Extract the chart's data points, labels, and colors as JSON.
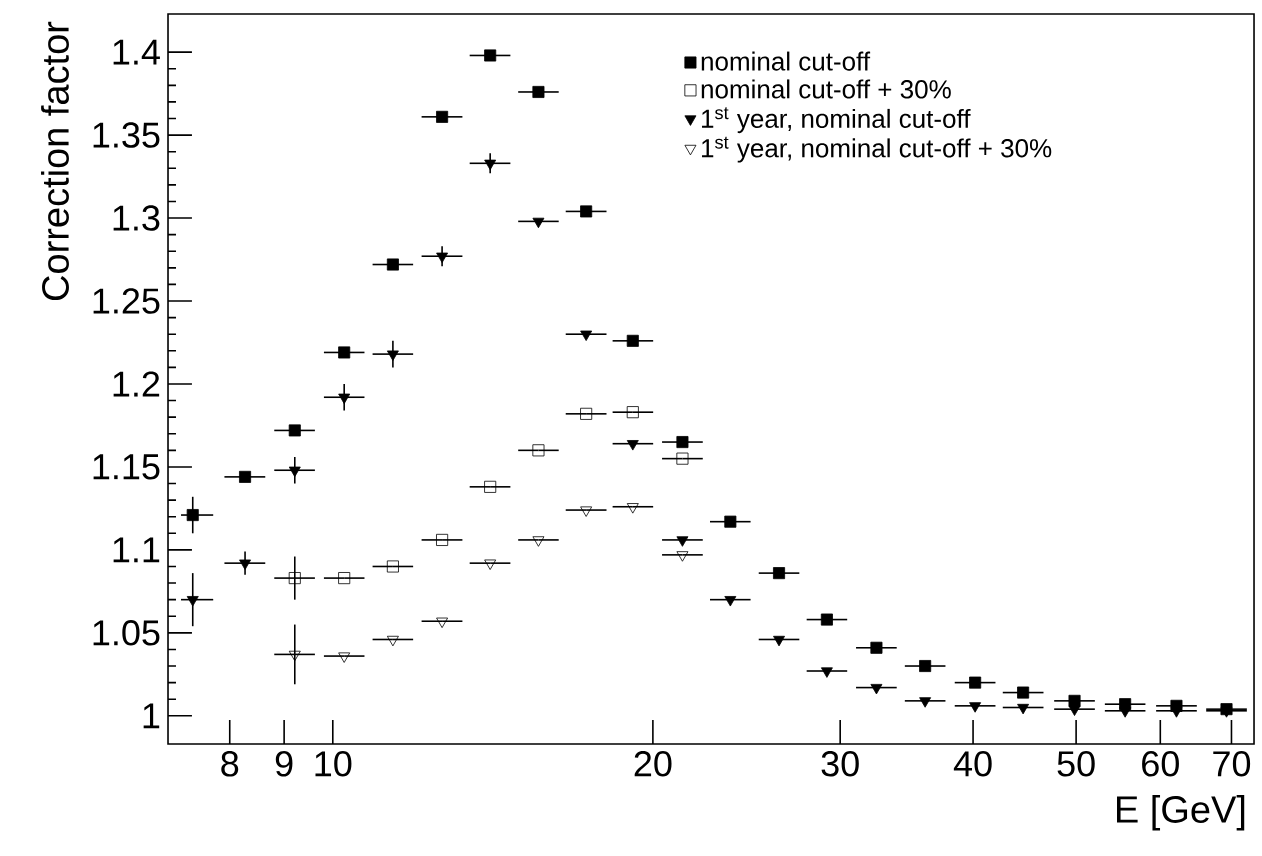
{
  "chart_data": {
    "type": "scatter",
    "xlabel": "E [GeV]",
    "ylabel": "Correction factor",
    "log": "x",
    "x": [
      7.385,
      8.27,
      9.21,
      10.25,
      11.39,
      12.67,
      14.06,
      15.61,
      17.31,
      19.15,
      21.32,
      23.65,
      26.28,
      29.15,
      32.45,
      36.06,
      40.18,
      44.58,
      49.83,
      55.6,
      62.14,
      69.25
    ],
    "xlim": [
      7,
      73.5
    ],
    "ylim": [
      0.983,
      1.423
    ],
    "xticks": [
      8,
      9,
      10,
      20,
      30,
      40,
      50,
      60,
      70
    ],
    "yticks": [
      1,
      1.05,
      1.1,
      1.15,
      1.2,
      1.25,
      1.3,
      1.35,
      1.4
    ],
    "legend": "top right",
    "grid": false,
    "series": [
      {
        "name": "nominal cut-off",
        "color": "#000000",
        "marker": "square",
        "values": [
          1.121,
          1.144,
          1.172,
          1.219,
          1.272,
          1.361,
          1.398,
          1.376,
          1.304,
          1.226,
          1.165,
          1.117,
          1.086,
          1.058,
          1.041,
          1.03,
          1.02,
          1.014,
          1.009,
          1.007,
          1.006,
          1.004
        ],
        "errors": [
          0.011,
          null,
          null,
          null,
          null,
          null,
          null,
          null,
          null,
          null,
          null,
          null,
          null,
          null,
          null,
          null,
          null,
          null,
          null,
          null,
          null,
          null
        ],
        "xerrors": [
          [
            7.2,
            7.72
          ],
          [
            7.91,
            8.64
          ],
          [
            8.81,
            9.62
          ],
          [
            9.81,
            10.71
          ],
          [
            10.9,
            11.9
          ],
          [
            12.12,
            13.24
          ],
          [
            13.45,
            14.69
          ],
          [
            14.94,
            16.31
          ],
          [
            16.56,
            18.09
          ],
          [
            18.33,
            20.01
          ],
          [
            20.4,
            22.28
          ],
          [
            22.63,
            24.71
          ],
          [
            25.15,
            27.46
          ],
          [
            27.9,
            30.46
          ],
          [
            31.05,
            33.91
          ],
          [
            34.51,
            37.68
          ],
          [
            38.45,
            41.99
          ],
          [
            42.66,
            46.59
          ],
          [
            47.68,
            52.07
          ],
          [
            53.21,
            58.1
          ],
          [
            59.46,
            64.94
          ],
          [
            66.27,
            72.37
          ]
        ]
      },
      {
        "name": "nominal cut-off + 30%",
        "color": "#000000",
        "marker": "square",
        "values": [
          null,
          null,
          1.083,
          1.083,
          1.09,
          1.106,
          1.138,
          1.16,
          1.182,
          1.183,
          1.155,
          null,
          null,
          null,
          null,
          null,
          null,
          null,
          null,
          null,
          null,
          null
        ],
        "errors": [
          null,
          null,
          0.013,
          null,
          null,
          null,
          null,
          null,
          null,
          null,
          null,
          null,
          null,
          null,
          null,
          null,
          null,
          null,
          null,
          null,
          null,
          null
        ],
        "xerrors": [
          null,
          null,
          [
            8.81,
            9.62
          ],
          [
            9.81,
            10.71
          ],
          [
            10.9,
            11.9
          ],
          [
            12.12,
            13.24
          ],
          [
            13.45,
            14.69
          ],
          [
            14.94,
            16.31
          ],
          [
            16.56,
            18.09
          ],
          [
            18.33,
            20.01
          ],
          [
            20.4,
            22.28
          ],
          null,
          null,
          null,
          null,
          null,
          null,
          null,
          null,
          null,
          null,
          null
        ]
      },
      {
        "name": "1$^{st}$ year, nominal cut-off",
        "color": "#000000",
        "marker": "triangle",
        "values": [
          1.07,
          1.092,
          1.148,
          1.192,
          1.218,
          1.277,
          1.333,
          1.298,
          1.23,
          1.164,
          1.106,
          1.07,
          1.046,
          1.027,
          1.017,
          1.009,
          1.006,
          1.005,
          1.004,
          1.003,
          1.003,
          1.003
        ],
        "errors": [
          0.016,
          0.007,
          0.008,
          0.008,
          0.008,
          0.006,
          0.006,
          null,
          null,
          null,
          null,
          null,
          null,
          null,
          null,
          null,
          null,
          null,
          null,
          null,
          null,
          null
        ],
        "xerrors": [
          [
            7.2,
            7.72
          ],
          [
            7.91,
            8.64
          ],
          [
            8.81,
            9.62
          ],
          [
            9.81,
            10.71
          ],
          [
            10.9,
            11.9
          ],
          [
            12.12,
            13.24
          ],
          [
            13.45,
            14.69
          ],
          [
            14.94,
            16.31
          ],
          [
            16.56,
            18.09
          ],
          [
            18.33,
            20.01
          ],
          [
            20.4,
            22.28
          ],
          [
            22.63,
            24.71
          ],
          [
            25.15,
            27.46
          ],
          [
            27.9,
            30.46
          ],
          [
            31.05,
            33.91
          ],
          [
            34.51,
            37.68
          ],
          [
            38.45,
            41.99
          ],
          [
            42.66,
            46.59
          ],
          [
            47.68,
            52.07
          ],
          [
            53.21,
            58.1
          ],
          [
            59.46,
            64.94
          ],
          [
            66.27,
            72.37
          ]
        ]
      },
      {
        "name": "1$^{st}$ year, nominal cut-off + 30%",
        "color": "#000000",
        "marker": "triangle",
        "values": [
          null,
          null,
          1.037,
          1.036,
          1.046,
          1.057,
          1.092,
          1.106,
          1.124,
          1.126,
          1.097,
          null,
          null,
          null,
          null,
          null,
          null,
          null,
          null,
          null,
          null,
          null
        ],
        "errors": [
          null,
          null,
          0.018,
          null,
          null,
          null,
          null,
          null,
          null,
          null,
          null,
          null,
          null,
          null,
          null,
          null,
          null,
          null,
          null,
          null,
          null,
          null
        ],
        "xerrors": [
          null,
          null,
          [
            8.81,
            9.62
          ],
          [
            9.81,
            10.71
          ],
          [
            10.9,
            11.9
          ],
          [
            12.12,
            13.24
          ],
          [
            13.45,
            14.69
          ],
          [
            14.94,
            16.31
          ],
          [
            16.56,
            18.09
          ],
          [
            18.33,
            20.01
          ],
          [
            20.4,
            22.28
          ],
          null,
          null,
          null,
          null,
          null,
          null,
          null,
          null,
          null,
          null,
          null
        ]
      }
    ]
  }
}
